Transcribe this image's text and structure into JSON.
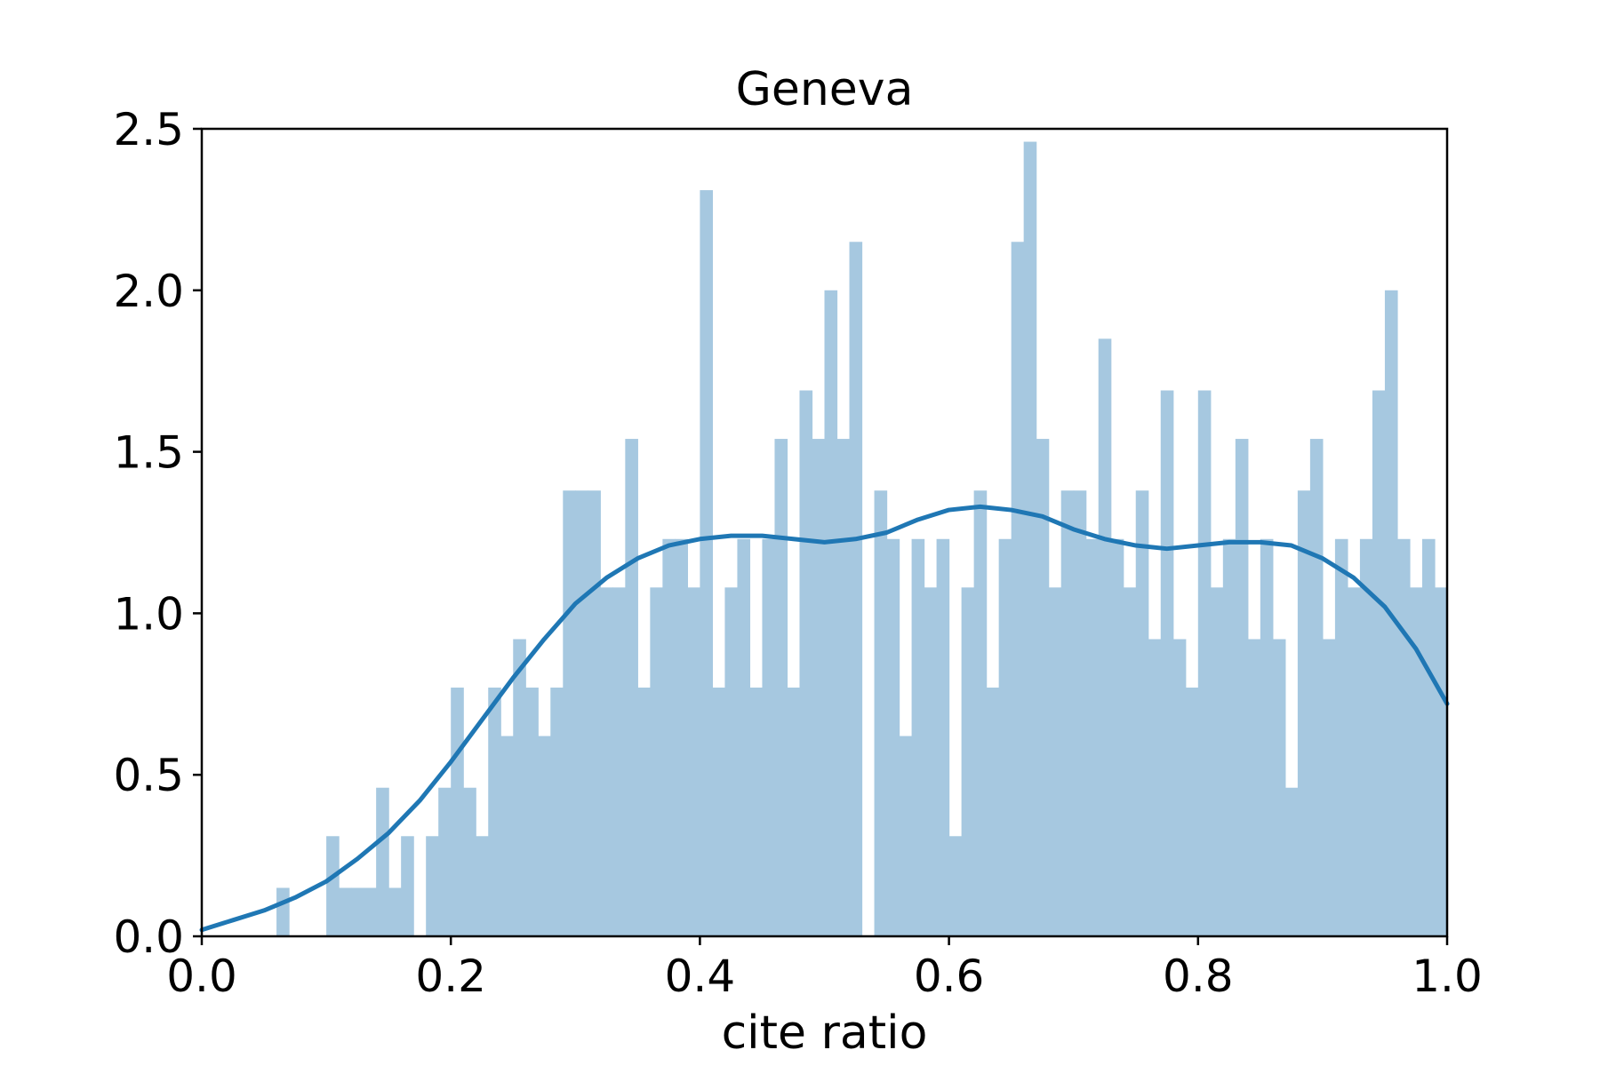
{
  "chart_data": {
    "type": "bar",
    "title": "Geneva",
    "xlabel": "cite ratio",
    "ylabel": "",
    "xlim": [
      0.0,
      1.0
    ],
    "ylim": [
      0.0,
      2.5
    ],
    "xticks": [
      "0.0",
      "0.2",
      "0.4",
      "0.6",
      "0.8",
      "1.0"
    ],
    "yticks": [
      "0.0",
      "0.5",
      "1.0",
      "1.5",
      "2.0",
      "2.5"
    ],
    "grid": false,
    "legend": "none",
    "colors": {
      "histogram": "#a6c8e0",
      "kde_line": "#1f77b4"
    },
    "histogram": {
      "bin_width": 0.01,
      "bin_starts": [
        0.06,
        0.07,
        0.08,
        0.09,
        0.1,
        0.11,
        0.12,
        0.13,
        0.14,
        0.15,
        0.16,
        0.17,
        0.18,
        0.19,
        0.2,
        0.21,
        0.22,
        0.23,
        0.24,
        0.25,
        0.26,
        0.27,
        0.28,
        0.29,
        0.3,
        0.31,
        0.32,
        0.33,
        0.34,
        0.35,
        0.36,
        0.37,
        0.38,
        0.39,
        0.4,
        0.41,
        0.42,
        0.43,
        0.44,
        0.45,
        0.46,
        0.47,
        0.48,
        0.49,
        0.5,
        0.51,
        0.52,
        0.53,
        0.54,
        0.55,
        0.56,
        0.57,
        0.58,
        0.59,
        0.6,
        0.61,
        0.62,
        0.63,
        0.64,
        0.65,
        0.66,
        0.67,
        0.68,
        0.69,
        0.7,
        0.71,
        0.72,
        0.73,
        0.74,
        0.75,
        0.76,
        0.77,
        0.78,
        0.79,
        0.8,
        0.81,
        0.82,
        0.83,
        0.84,
        0.85,
        0.86,
        0.87,
        0.88,
        0.89,
        0.9,
        0.91,
        0.92,
        0.93,
        0.94,
        0.95,
        0.96,
        0.97,
        0.98,
        0.99
      ],
      "density": [
        0.15,
        0.0,
        0.0,
        0.0,
        0.31,
        0.15,
        0.15,
        0.15,
        0.46,
        0.15,
        0.31,
        0.0,
        0.31,
        0.46,
        0.77,
        0.46,
        0.31,
        0.77,
        0.62,
        0.92,
        0.77,
        0.62,
        0.77,
        1.38,
        1.38,
        1.38,
        1.08,
        1.08,
        1.54,
        0.77,
        1.08,
        1.23,
        1.23,
        1.08,
        2.31,
        0.77,
        1.08,
        1.23,
        0.77,
        1.23,
        1.54,
        0.77,
        1.69,
        1.54,
        2.0,
        1.54,
        2.15,
        0.0,
        1.38,
        1.23,
        0.62,
        1.23,
        1.08,
        1.23,
        0.31,
        1.08,
        1.38,
        0.77,
        1.23,
        2.15,
        2.46,
        1.54,
        1.08,
        1.38,
        1.38,
        1.23,
        1.85,
        1.23,
        1.08,
        1.38,
        0.92,
        1.69,
        0.92,
        0.77,
        1.69,
        1.08,
        1.23,
        1.54,
        0.92,
        1.23,
        0.92,
        0.46,
        1.38,
        1.54,
        0.92,
        1.23,
        1.08,
        1.23,
        1.69,
        2.0,
        1.23,
        1.08,
        1.23,
        1.08
      ]
    },
    "kde": {
      "x": [
        0.0,
        0.025,
        0.05,
        0.075,
        0.1,
        0.125,
        0.15,
        0.175,
        0.2,
        0.225,
        0.25,
        0.275,
        0.3,
        0.325,
        0.35,
        0.375,
        0.4,
        0.425,
        0.45,
        0.475,
        0.5,
        0.525,
        0.55,
        0.575,
        0.6,
        0.625,
        0.65,
        0.675,
        0.7,
        0.725,
        0.75,
        0.775,
        0.8,
        0.825,
        0.85,
        0.875,
        0.9,
        0.925,
        0.95,
        0.975,
        1.0
      ],
      "y": [
        0.02,
        0.05,
        0.08,
        0.12,
        0.17,
        0.24,
        0.32,
        0.42,
        0.54,
        0.67,
        0.8,
        0.92,
        1.03,
        1.11,
        1.17,
        1.21,
        1.23,
        1.24,
        1.24,
        1.23,
        1.22,
        1.23,
        1.25,
        1.29,
        1.32,
        1.33,
        1.32,
        1.3,
        1.26,
        1.23,
        1.21,
        1.2,
        1.21,
        1.22,
        1.22,
        1.21,
        1.17,
        1.11,
        1.02,
        0.89,
        0.72
      ]
    }
  }
}
